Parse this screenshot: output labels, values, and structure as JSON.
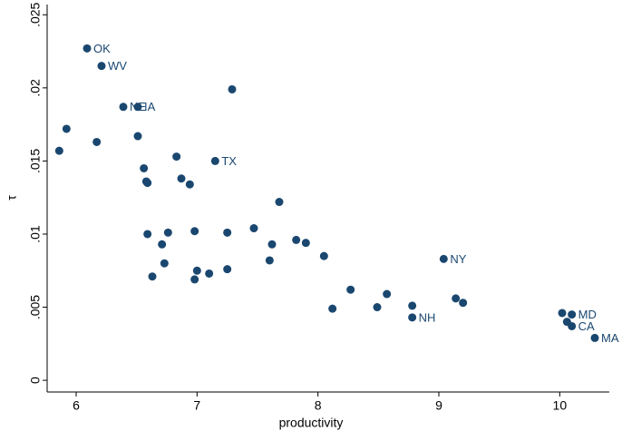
{
  "chart_data": {
    "type": "scatter",
    "x_label": "productivity",
    "y_label": "τ",
    "color": "#1a476f",
    "xlim": [
      5.76,
      10.41
    ],
    "ylim": [
      -0.0008,
      0.0257
    ],
    "xticks": [
      6,
      7,
      8,
      9,
      10
    ],
    "yticks": [
      0,
      {
        "value": 0.005,
        "label": ".005"
      },
      {
        "value": 0.01,
        "label": ".01"
      },
      {
        "value": 0.015,
        "label": ".015"
      },
      {
        "value": 0.02,
        "label": ".02"
      },
      {
        "value": 0.025,
        "label": ".025"
      }
    ],
    "x": [
      6.09,
      6.21,
      6.39,
      6.51,
      7.29,
      5.92,
      5.86,
      6.17,
      6.51,
      7.15,
      6.83,
      6.56,
      6.58,
      6.59,
      6.87,
      6.94,
      7.68,
      7.47,
      6.59,
      6.76,
      6.98,
      7.25,
      6.71,
      7.62,
      7.82,
      7.9,
      8.05,
      7.6,
      6.73,
      9.04,
      6.63,
      7.0,
      7.1,
      7.25,
      6.98,
      8.27,
      8.57,
      9.14,
      9.2,
      8.78,
      8.12,
      8.49,
      8.78,
      10.02,
      10.1,
      10.06,
      10.1,
      10.29
    ],
    "y": [
      0.0227,
      0.0215,
      0.0187,
      0.0187,
      0.0199,
      0.0172,
      0.0157,
      0.0163,
      0.0167,
      0.015,
      0.0153,
      0.0145,
      0.0136,
      0.0135,
      0.0138,
      0.0134,
      0.0122,
      0.0104,
      0.01,
      0.0101,
      0.0102,
      0.0101,
      0.0093,
      0.0093,
      0.0096,
      0.0094,
      0.0085,
      0.0082,
      0.008,
      0.0083,
      0.0071,
      0.0075,
      0.0073,
      0.0076,
      0.0069,
      0.0062,
      0.0059,
      0.0056,
      0.0053,
      0.0051,
      0.0049,
      0.005,
      0.0043,
      0.0046,
      0.0045,
      0.004,
      0.0037,
      0.0029
    ],
    "labels": [
      "OK",
      "WV",
      "NE",
      "IA",
      null,
      null,
      null,
      null,
      null,
      "TX",
      null,
      null,
      null,
      null,
      null,
      null,
      null,
      null,
      null,
      null,
      null,
      null,
      null,
      null,
      null,
      null,
      null,
      null,
      null,
      "NY",
      null,
      null,
      null,
      null,
      null,
      null,
      null,
      null,
      null,
      null,
      null,
      null,
      "NH",
      null,
      "MD",
      null,
      "CA",
      "MA"
    ]
  }
}
